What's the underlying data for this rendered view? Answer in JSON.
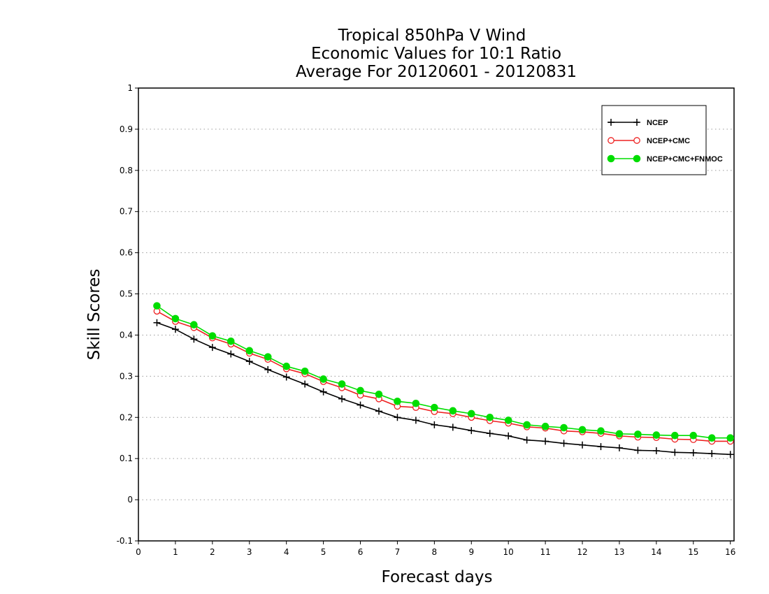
{
  "chart_data": {
    "type": "line",
    "title": [
      "Tropical 850hPa V Wind",
      "Economic Values for 10:1 Ratio",
      "Average For 20120601 - 20120831"
    ],
    "xlabel": "Forecast days",
    "ylabel": "Skill Scores",
    "xlim": [
      0,
      16.1
    ],
    "ylim": [
      -0.1,
      1
    ],
    "x_ticks": [
      0,
      1,
      2,
      3,
      4,
      5,
      6,
      7,
      8,
      9,
      10,
      11,
      12,
      13,
      14,
      15,
      16
    ],
    "x_tick_labels": [
      "0",
      "1",
      "2",
      "3",
      "4",
      "5",
      "6",
      "7",
      "8",
      "9",
      "10",
      "11",
      "12",
      "13",
      "14",
      "15",
      "16"
    ],
    "y_ticks": [
      -0.1,
      0,
      0.1,
      0.2,
      0.3,
      0.4,
      0.5,
      0.6,
      0.7,
      0.8,
      0.9,
      1
    ],
    "y_tick_labels": [
      "-0.1",
      "0",
      "0.1",
      "0.2",
      "0.3",
      "0.4",
      "0.5",
      "0.6",
      "0.7",
      "0.8",
      "0.9",
      "1"
    ],
    "grid": true,
    "legend_position": "top-right",
    "x": [
      0.5,
      1,
      1.5,
      2,
      2.5,
      3,
      3.5,
      4,
      4.5,
      5,
      5.5,
      6,
      6.5,
      7,
      7.5,
      8,
      8.5,
      9,
      9.5,
      10,
      10.5,
      11,
      11.5,
      12,
      12.5,
      13,
      13.5,
      14,
      14.5,
      15,
      15.5,
      16
    ],
    "series": [
      {
        "name": "NCEP",
        "color": "#000000",
        "marker": "plus",
        "values": [
          0.43,
          0.414,
          0.39,
          0.37,
          0.354,
          0.336,
          0.316,
          0.298,
          0.281,
          0.262,
          0.245,
          0.23,
          0.215,
          0.2,
          0.193,
          0.182,
          0.176,
          0.168,
          0.161,
          0.155,
          0.145,
          0.142,
          0.137,
          0.133,
          0.129,
          0.126,
          0.12,
          0.119,
          0.115,
          0.114,
          0.112,
          0.11
        ]
      },
      {
        "name": "NCEP+CMC",
        "color": "#ee2222",
        "marker": "open-circle",
        "values": [
          0.458,
          0.433,
          0.418,
          0.393,
          0.378,
          0.356,
          0.341,
          0.318,
          0.306,
          0.287,
          0.272,
          0.254,
          0.245,
          0.227,
          0.224,
          0.214,
          0.209,
          0.2,
          0.192,
          0.186,
          0.177,
          0.174,
          0.167,
          0.165,
          0.161,
          0.155,
          0.152,
          0.151,
          0.147,
          0.146,
          0.142,
          0.142
        ]
      },
      {
        "name": "NCEP+CMC+FNMOC",
        "color": "#00dd00",
        "marker": "filled-circle",
        "values": [
          0.471,
          0.44,
          0.425,
          0.398,
          0.385,
          0.362,
          0.347,
          0.324,
          0.312,
          0.293,
          0.281,
          0.265,
          0.256,
          0.239,
          0.234,
          0.224,
          0.216,
          0.209,
          0.2,
          0.193,
          0.182,
          0.178,
          0.175,
          0.17,
          0.167,
          0.16,
          0.159,
          0.157,
          0.156,
          0.156,
          0.15,
          0.15
        ]
      }
    ]
  }
}
